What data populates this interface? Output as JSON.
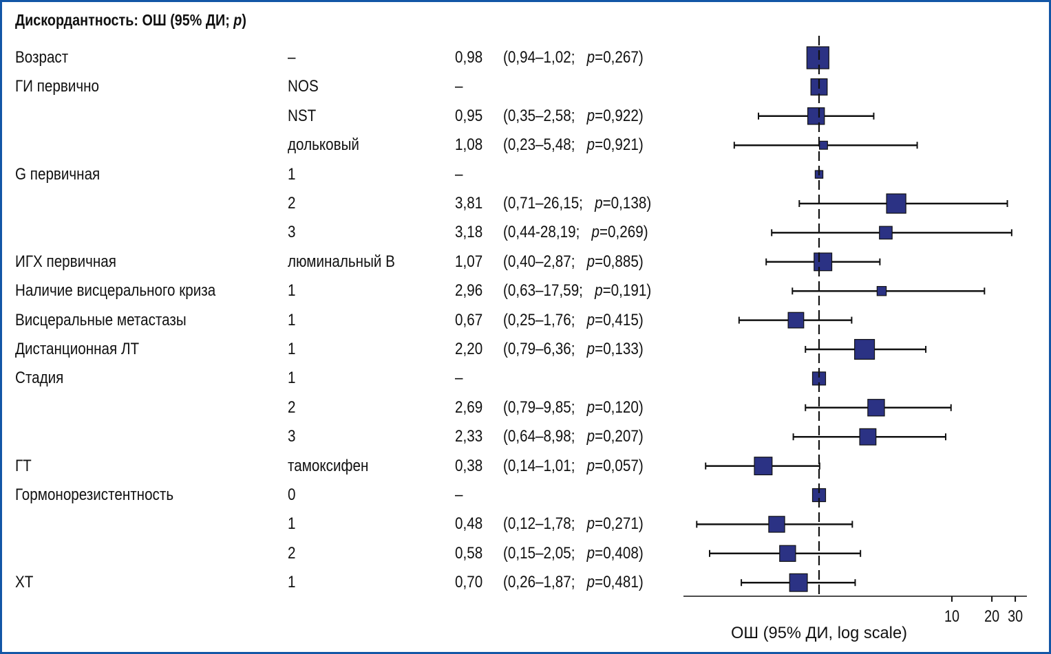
{
  "title_prefix": "Дискордантность: ОШ (95% ДИ; ",
  "title_p": "p",
  "title_suffix": ")",
  "colors": {
    "frame": "#1356a6",
    "marker": "#2b3284",
    "line": "#111111"
  },
  "chart_data": {
    "type": "forest",
    "title": "Дискордантность: ОШ (95% ДИ; p)",
    "xlabel": "ОШ (95% ДИ, log scale)",
    "xscale": "log",
    "reference_line": 1,
    "xticks": [
      10,
      20,
      30
    ],
    "xtick_labels": [
      "10",
      "20",
      "30"
    ],
    "xlim": [
      0.1,
      35
    ],
    "rows": [
      {
        "variable": "Возраст",
        "level": "–",
        "or_text": "0,98",
        "ci_text": "(0,94–1,02;",
        "p_text": "=0,267)",
        "or": 0.98,
        "lo": 0.94,
        "hi": 1.02,
        "weight": 1.0,
        "reference": false
      },
      {
        "variable": "ГИ первично",
        "level": "NOS",
        "or_text": "–",
        "ci_text": "",
        "p_text": "",
        "or": 1,
        "lo": null,
        "hi": null,
        "weight": 0.68,
        "reference": true
      },
      {
        "variable": "",
        "level": "NST",
        "or_text": "0,95",
        "ci_text": "(0,35–2,58;",
        "p_text": "=0,922)",
        "or": 0.95,
        "lo": 0.35,
        "hi": 2.58,
        "weight": 0.7,
        "reference": false
      },
      {
        "variable": "",
        "level": "дольковый",
        "or_text": "1,08",
        "ci_text": "(0,23–5,48;",
        "p_text": "=0,921)",
        "or": 1.08,
        "lo": 0.23,
        "hi": 5.48,
        "weight": 0.22,
        "reference": false
      },
      {
        "variable": "G первичная",
        "level": "1",
        "or_text": "–",
        "ci_text": "",
        "p_text": "",
        "or": 1,
        "lo": null,
        "hi": null,
        "weight": 0.2,
        "reference": true
      },
      {
        "variable": "",
        "level": "2",
        "or_text": "3,81",
        "ci_text": "(0,71–26,15;",
        "p_text": "=0,138)",
        "or": 3.81,
        "lo": 0.71,
        "hi": 26.15,
        "weight": 0.85,
        "reference": false
      },
      {
        "variable": "",
        "level": "3",
        "or_text": "3,18",
        "ci_text": "(0,44-28,19;",
        "p_text": "=0,269)",
        "or": 3.18,
        "lo": 0.44,
        "hi": 28.19,
        "weight": 0.48,
        "reference": false
      },
      {
        "variable": "ИГХ первичная",
        "level": "люминальный B",
        "or_text": "1,07",
        "ci_text": "(0,40–2,87;",
        "p_text": "=0,885)",
        "or": 1.07,
        "lo": 0.4,
        "hi": 2.87,
        "weight": 0.76,
        "reference": false
      },
      {
        "variable": "Наличие висцерального криза",
        "level": "1",
        "or_text": "2,96",
        "ci_text": "(0,63–17,59;",
        "p_text": "=0,191)",
        "or": 2.96,
        "lo": 0.63,
        "hi": 17.59,
        "weight": 0.28,
        "reference": false
      },
      {
        "variable": "Висцеральные метастазы",
        "level": "1",
        "or_text": "0,67",
        "ci_text": "(0,25–1,76;",
        "p_text": "=0,415)",
        "or": 0.67,
        "lo": 0.25,
        "hi": 1.76,
        "weight": 0.64,
        "reference": false
      },
      {
        "variable": "Дистанционная ЛТ",
        "level": "1",
        "or_text": "2,20",
        "ci_text": "(0,79–6,36;",
        "p_text": "=0,133)",
        "or": 2.2,
        "lo": 0.79,
        "hi": 6.36,
        "weight": 0.88,
        "reference": false
      },
      {
        "variable": "Стадия",
        "level": "1",
        "or_text": "–",
        "ci_text": "",
        "p_text": "",
        "or": 1,
        "lo": null,
        "hi": null,
        "weight": 0.5,
        "reference": true
      },
      {
        "variable": "",
        "level": "2",
        "or_text": "2,69",
        "ci_text": "(0,79–9,85;",
        "p_text": "=0,120)",
        "or": 2.69,
        "lo": 0.79,
        "hi": 9.85,
        "weight": 0.7,
        "reference": false
      },
      {
        "variable": "",
        "level": "3",
        "or_text": "2,33",
        "ci_text": "(0,64–8,98;",
        "p_text": "=0,207)",
        "or": 2.33,
        "lo": 0.64,
        "hi": 8.98,
        "weight": 0.68,
        "reference": false
      },
      {
        "variable": "ГТ",
        "level": "тамоксифен",
        "or_text": "0,38",
        "ci_text": "(0,14–1,01;",
        "p_text": "=0,057)",
        "or": 0.38,
        "lo": 0.14,
        "hi": 1.01,
        "weight": 0.76,
        "reference": false
      },
      {
        "variable": "Гормонорезистентность",
        "level": "0",
        "or_text": "–",
        "ci_text": "",
        "p_text": "",
        "or": 1,
        "lo": null,
        "hi": null,
        "weight": 0.5,
        "reference": true
      },
      {
        "variable": "",
        "level": "1",
        "or_text": "0,48",
        "ci_text": "(0,12–1,78;",
        "p_text": "=0,271)",
        "or": 0.48,
        "lo": 0.12,
        "hi": 1.78,
        "weight": 0.66,
        "reference": false
      },
      {
        "variable": "",
        "level": "2",
        "or_text": "0,58",
        "ci_text": "(0,15–2,05;",
        "p_text": "=0,408)",
        "or": 0.58,
        "lo": 0.15,
        "hi": 2.05,
        "weight": 0.66,
        "reference": false
      },
      {
        "variable": "ХТ",
        "level": "1",
        "or_text": "0,70",
        "ci_text": "(0,26–1,87;",
        "p_text": "=0,481)",
        "or": 0.7,
        "lo": 0.26,
        "hi": 1.87,
        "weight": 0.76,
        "reference": false
      }
    ]
  }
}
